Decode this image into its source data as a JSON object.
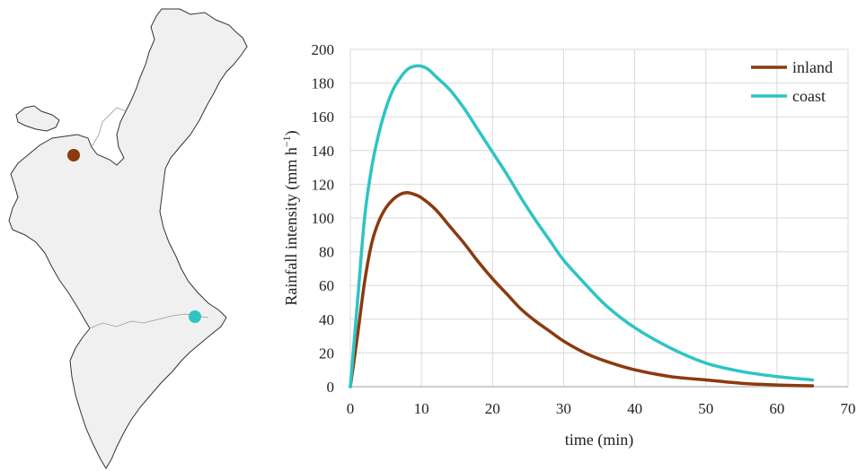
{
  "colors": {
    "inland": "#8B3A0F",
    "coast": "#2EC4C4",
    "map_fill": "#f0f0f0",
    "map_stroke": "#333333",
    "grid": "#d9d9d9"
  },
  "map": {
    "markers": [
      {
        "name": "inland",
        "color": "#8B3A0F"
      },
      {
        "name": "coast",
        "color": "#2EC4C4"
      }
    ]
  },
  "chart_data": {
    "type": "line",
    "title": "",
    "xlabel": "time (min)",
    "ylabel": "Rainfall intensity (mm h",
    "ylabel_sup": "−1",
    "ylabel_end": ")",
    "xlim": [
      0,
      70
    ],
    "ylim": [
      0,
      200
    ],
    "xticks": [
      0,
      10,
      20,
      30,
      40,
      50,
      60,
      70
    ],
    "yticks": [
      0,
      20,
      40,
      60,
      80,
      100,
      120,
      140,
      160,
      180,
      200
    ],
    "grid": true,
    "legend_position": "top-right",
    "series": [
      {
        "name": "inland",
        "color": "#8B3A0F",
        "x": [
          0,
          1,
          2,
          3,
          4,
          5,
          6,
          7,
          8,
          9,
          10,
          12,
          14,
          16,
          18,
          20,
          22,
          24,
          26,
          28,
          30,
          33,
          36,
          40,
          45,
          50,
          55,
          60,
          65
        ],
        "y": [
          0,
          30,
          62,
          85,
          98,
          106,
          111,
          114,
          115,
          114,
          112,
          105,
          95,
          85,
          74,
          64,
          55,
          46,
          39,
          33,
          27,
          20,
          15,
          10,
          6,
          4,
          2,
          1,
          0.5
        ]
      },
      {
        "name": "coast",
        "color": "#2EC4C4",
        "x": [
          0,
          1,
          2,
          3,
          4,
          5,
          6,
          7,
          8,
          9,
          10,
          11,
          12,
          14,
          16,
          18,
          20,
          22,
          24,
          26,
          28,
          30,
          33,
          36,
          40,
          45,
          50,
          55,
          60,
          65
        ],
        "y": [
          0,
          50,
          100,
          130,
          150,
          165,
          176,
          183,
          188,
          190,
          190,
          188,
          184,
          176,
          165,
          152,
          139,
          126,
          112,
          99,
          87,
          75,
          61,
          48,
          35,
          23,
          14,
          9,
          6,
          4
        ]
      }
    ]
  }
}
